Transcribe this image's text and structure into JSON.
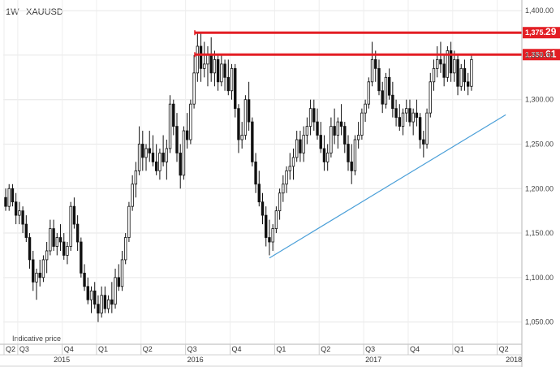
{
  "header": {
    "timeframe": "1W",
    "symbol": "XAUUSD"
  },
  "note": "Indicative price",
  "chart_data": {
    "type": "candlestick",
    "title": "",
    "xlabel": "",
    "ylabel": "",
    "ylim": [
      1025,
      1412
    ],
    "grid": true,
    "y_ticks": [
      "1,050.00",
      "1,100.00",
      "1,150.00",
      "1,200.00",
      "1,250.00",
      "1,300.00",
      "1,350.00",
      "1,400.00"
    ],
    "y_tick_values": [
      1050,
      1100,
      1150,
      1200,
      1250,
      1300,
      1350,
      1400
    ],
    "x_quarter_labels": [
      {
        "label": "Q2",
        "week": 0
      },
      {
        "label": "Q3",
        "week": 4
      },
      {
        "label": "Q4",
        "week": 17
      },
      {
        "label": "Q1",
        "week": 27
      },
      {
        "label": "Q2",
        "week": 40
      },
      {
        "label": "Q3",
        "week": 53
      },
      {
        "label": "Q4",
        "week": 66
      },
      {
        "label": "Q1",
        "week": 79
      },
      {
        "label": "Q2",
        "week": 92
      },
      {
        "label": "Q3",
        "week": 105
      },
      {
        "label": "Q4",
        "week": 118
      },
      {
        "label": "Q1",
        "week": 131
      },
      {
        "label": "Q2",
        "week": 144
      }
    ],
    "x_year_labels": [
      {
        "label": "2015",
        "week": 14
      },
      {
        "label": "2016",
        "week": 53
      },
      {
        "label": "2017",
        "week": 105
      },
      {
        "label": "2018",
        "week": 146
      }
    ],
    "candles": [
      [
        1190,
        1200,
        1175,
        1180
      ],
      [
        1180,
        1205,
        1175,
        1200
      ],
      [
        1200,
        1205,
        1180,
        1185
      ],
      [
        1185,
        1195,
        1160,
        1170
      ],
      [
        1170,
        1185,
        1160,
        1175
      ],
      [
        1175,
        1180,
        1150,
        1160
      ],
      [
        1160,
        1170,
        1140,
        1145
      ],
      [
        1145,
        1150,
        1110,
        1120
      ],
      [
        1120,
        1130,
        1085,
        1095
      ],
      [
        1095,
        1110,
        1075,
        1105
      ],
      [
        1105,
        1120,
        1090,
        1100
      ],
      [
        1100,
        1125,
        1095,
        1120
      ],
      [
        1120,
        1140,
        1105,
        1130
      ],
      [
        1130,
        1165,
        1125,
        1155
      ],
      [
        1155,
        1165,
        1130,
        1135
      ],
      [
        1135,
        1150,
        1125,
        1145
      ],
      [
        1145,
        1160,
        1130,
        1140
      ],
      [
        1140,
        1150,
        1120,
        1125
      ],
      [
        1125,
        1140,
        1115,
        1135
      ],
      [
        1135,
        1185,
        1130,
        1180
      ],
      [
        1180,
        1190,
        1155,
        1160
      ],
      [
        1160,
        1170,
        1130,
        1140
      ],
      [
        1140,
        1145,
        1100,
        1105
      ],
      [
        1105,
        1115,
        1085,
        1090
      ],
      [
        1090,
        1100,
        1070,
        1075
      ],
      [
        1075,
        1090,
        1060,
        1085
      ],
      [
        1085,
        1095,
        1065,
        1070
      ],
      [
        1070,
        1080,
        1050,
        1060
      ],
      [
        1060,
        1090,
        1055,
        1080
      ],
      [
        1080,
        1090,
        1060,
        1065
      ],
      [
        1065,
        1080,
        1060,
        1075
      ],
      [
        1075,
        1095,
        1060,
        1070
      ],
      [
        1070,
        1110,
        1065,
        1100
      ],
      [
        1100,
        1115,
        1085,
        1090
      ],
      [
        1090,
        1130,
        1085,
        1120
      ],
      [
        1120,
        1150,
        1115,
        1145
      ],
      [
        1145,
        1185,
        1140,
        1180
      ],
      [
        1180,
        1215,
        1175,
        1205
      ],
      [
        1205,
        1230,
        1190,
        1220
      ],
      [
        1220,
        1270,
        1215,
        1250
      ],
      [
        1250,
        1265,
        1220,
        1235
      ],
      [
        1235,
        1250,
        1220,
        1245
      ],
      [
        1245,
        1265,
        1230,
        1240
      ],
      [
        1240,
        1260,
        1225,
        1230
      ],
      [
        1230,
        1250,
        1215,
        1220
      ],
      [
        1220,
        1245,
        1210,
        1240
      ],
      [
        1240,
        1260,
        1225,
        1230
      ],
      [
        1230,
        1255,
        1210,
        1245
      ],
      [
        1245,
        1305,
        1240,
        1295
      ],
      [
        1295,
        1300,
        1260,
        1270
      ],
      [
        1270,
        1285,
        1230,
        1240
      ],
      [
        1240,
        1250,
        1200,
        1215
      ],
      [
        1215,
        1270,
        1210,
        1265
      ],
      [
        1265,
        1285,
        1245,
        1255
      ],
      [
        1255,
        1300,
        1250,
        1295
      ],
      [
        1295,
        1350,
        1290,
        1330
      ],
      [
        1330,
        1375,
        1320,
        1360
      ],
      [
        1360,
        1375,
        1320,
        1335
      ],
      [
        1335,
        1365,
        1325,
        1340
      ],
      [
        1340,
        1360,
        1315,
        1350
      ],
      [
        1350,
        1370,
        1320,
        1330
      ],
      [
        1330,
        1355,
        1315,
        1345
      ],
      [
        1345,
        1350,
        1310,
        1320
      ],
      [
        1320,
        1350,
        1315,
        1340
      ],
      [
        1340,
        1345,
        1310,
        1325
      ],
      [
        1325,
        1345,
        1305,
        1310
      ],
      [
        1310,
        1340,
        1300,
        1335
      ],
      [
        1335,
        1340,
        1280,
        1290
      ],
      [
        1290,
        1295,
        1240,
        1255
      ],
      [
        1255,
        1275,
        1245,
        1260
      ],
      [
        1260,
        1305,
        1255,
        1300
      ],
      [
        1300,
        1320,
        1265,
        1275
      ],
      [
        1275,
        1280,
        1225,
        1230
      ],
      [
        1230,
        1240,
        1195,
        1205
      ],
      [
        1205,
        1220,
        1180,
        1185
      ],
      [
        1185,
        1195,
        1160,
        1170
      ],
      [
        1170,
        1180,
        1135,
        1145
      ],
      [
        1145,
        1165,
        1125,
        1140
      ],
      [
        1140,
        1160,
        1130,
        1155
      ],
      [
        1155,
        1180,
        1150,
        1175
      ],
      [
        1175,
        1200,
        1165,
        1195
      ],
      [
        1195,
        1215,
        1185,
        1205
      ],
      [
        1205,
        1225,
        1195,
        1220
      ],
      [
        1220,
        1240,
        1210,
        1225
      ],
      [
        1225,
        1245,
        1210,
        1235
      ],
      [
        1235,
        1265,
        1230,
        1255
      ],
      [
        1255,
        1265,
        1230,
        1240
      ],
      [
        1240,
        1270,
        1230,
        1260
      ],
      [
        1260,
        1280,
        1250,
        1270
      ],
      [
        1270,
        1300,
        1260,
        1290
      ],
      [
        1290,
        1300,
        1265,
        1275
      ],
      [
        1275,
        1290,
        1255,
        1260
      ],
      [
        1260,
        1275,
        1240,
        1245
      ],
      [
        1245,
        1260,
        1220,
        1230
      ],
      [
        1230,
        1250,
        1220,
        1240
      ],
      [
        1240,
        1280,
        1235,
        1270
      ],
      [
        1270,
        1290,
        1250,
        1260
      ],
      [
        1260,
        1280,
        1245,
        1275
      ],
      [
        1275,
        1295,
        1260,
        1270
      ],
      [
        1270,
        1275,
        1240,
        1250
      ],
      [
        1250,
        1260,
        1220,
        1230
      ],
      [
        1230,
        1250,
        1205,
        1220
      ],
      [
        1220,
        1260,
        1215,
        1255
      ],
      [
        1255,
        1275,
        1245,
        1260
      ],
      [
        1260,
        1290,
        1255,
        1285
      ],
      [
        1285,
        1300,
        1275,
        1295
      ],
      [
        1295,
        1325,
        1290,
        1320
      ],
      [
        1320,
        1365,
        1315,
        1345
      ],
      [
        1345,
        1355,
        1320,
        1335
      ],
      [
        1335,
        1345,
        1305,
        1310
      ],
      [
        1310,
        1320,
        1285,
        1295
      ],
      [
        1295,
        1330,
        1290,
        1325
      ],
      [
        1325,
        1335,
        1300,
        1305
      ],
      [
        1305,
        1320,
        1280,
        1290
      ],
      [
        1290,
        1300,
        1270,
        1280
      ],
      [
        1280,
        1295,
        1265,
        1270
      ],
      [
        1270,
        1290,
        1260,
        1285
      ],
      [
        1285,
        1300,
        1275,
        1290
      ],
      [
        1290,
        1300,
        1270,
        1275
      ],
      [
        1275,
        1290,
        1260,
        1285
      ],
      [
        1285,
        1300,
        1270,
        1280
      ],
      [
        1280,
        1285,
        1245,
        1255
      ],
      [
        1255,
        1265,
        1235,
        1250
      ],
      [
        1250,
        1290,
        1245,
        1285
      ],
      [
        1285,
        1330,
        1280,
        1320
      ],
      [
        1320,
        1345,
        1310,
        1335
      ],
      [
        1335,
        1360,
        1325,
        1345
      ],
      [
        1345,
        1365,
        1330,
        1340
      ],
      [
        1340,
        1350,
        1315,
        1325
      ],
      [
        1325,
        1360,
        1320,
        1355
      ],
      [
        1355,
        1365,
        1320,
        1330
      ],
      [
        1330,
        1355,
        1320,
        1345
      ],
      [
        1345,
        1350,
        1305,
        1315
      ],
      [
        1315,
        1340,
        1310,
        1335
      ],
      [
        1335,
        1345,
        1310,
        1320
      ],
      [
        1320,
        1330,
        1305,
        1315
      ],
      [
        1315,
        1350,
        1310,
        1345
      ]
    ],
    "horizontal_levels": [
      {
        "value": 1375.29,
        "label_main": "1,375.",
        "label_small": "29",
        "color": "#e31e24"
      },
      {
        "value": 1350.61,
        "label_main": "1,350.",
        "label_small": "61",
        "color": "#e31e24"
      }
    ],
    "trendline": {
      "from": {
        "week": 77,
        "price": 1122
      },
      "to": {
        "week": 146,
        "price": 1283
      },
      "color": "#4a9fd8"
    }
  }
}
